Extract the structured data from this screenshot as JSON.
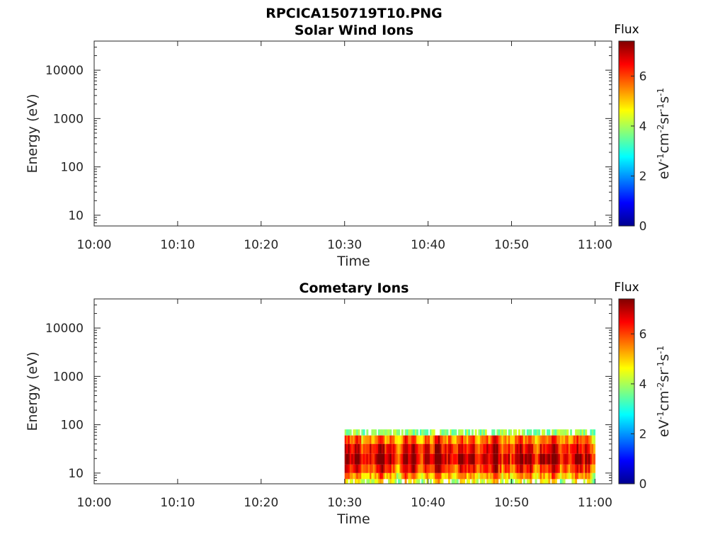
{
  "figure_title": "RPCICA150719T10.PNG",
  "colormap": [
    "#00008f",
    "#0000ff",
    "#0080ff",
    "#00ffff",
    "#80ff80",
    "#ffff00",
    "#ff8000",
    "#ff0000",
    "#800000"
  ],
  "chart_data": [
    {
      "type": "heatmap",
      "title": "Solar Wind Ions",
      "xlabel": "Time",
      "ylabel": "Energy (eV)",
      "x_tick_labels": [
        "10:00",
        "10:10",
        "10:20",
        "10:30",
        "10:40",
        "10:50",
        "11:00"
      ],
      "x_range": [
        "10:00",
        "11:02"
      ],
      "y_scale": "log",
      "y_range": [
        6,
        40000
      ],
      "y_tick_labels": [
        "10",
        "100",
        "1000",
        "10000"
      ],
      "colorbar": {
        "title": "Flux",
        "label": "eV-1cm-2sr-1s-1",
        "range": [
          0,
          7.4
        ],
        "tick_labels": [
          "0",
          "2",
          "4",
          "6"
        ]
      },
      "data_present": false,
      "data_time_range": [],
      "data_energy_range": [],
      "bands": []
    },
    {
      "type": "heatmap",
      "title": "Cometary Ions",
      "xlabel": "Time",
      "ylabel": "Energy (eV)",
      "x_tick_labels": [
        "10:00",
        "10:10",
        "10:20",
        "10:30",
        "10:40",
        "10:50",
        "11:00"
      ],
      "x_range": [
        "10:00",
        "11:02"
      ],
      "y_scale": "log",
      "y_range": [
        6,
        40000
      ],
      "y_tick_labels": [
        "10",
        "100",
        "1000",
        "10000"
      ],
      "colorbar": {
        "title": "Flux",
        "label": "eV-1cm-2sr-1s-1",
        "range": [
          0,
          7.4
        ],
        "tick_labels": [
          "0",
          "2",
          "4",
          "6"
        ]
      },
      "data_present": true,
      "data_time_range": [
        "10:30",
        "11:00"
      ],
      "data_energy_range": [
        6,
        80
      ],
      "bands": [
        {
          "energy": [
            60,
            80
          ],
          "flux": 3.8
        },
        {
          "energy": [
            40,
            60
          ],
          "flux": 5.6
        },
        {
          "energy": [
            25,
            40
          ],
          "flux": 6.4
        },
        {
          "energy": [
            15,
            25
          ],
          "flux": 6.8
        },
        {
          "energy": [
            10,
            15
          ],
          "flux": 6.1
        },
        {
          "energy": [
            7.5,
            10
          ],
          "flux": 5.2
        },
        {
          "energy": [
            6,
            7.5
          ],
          "flux": 4.4
        }
      ]
    }
  ]
}
